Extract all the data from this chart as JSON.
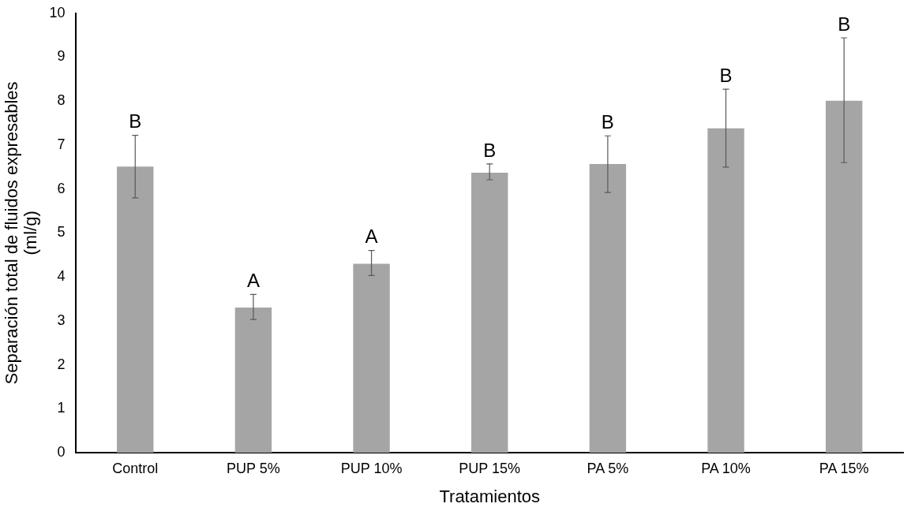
{
  "chart_data": {
    "type": "bar",
    "xlabel": "Tratamientos",
    "ylabel": "Separación total de fluidos expresables (ml/g)",
    "categories": [
      "Control",
      "PUP 5%",
      "PUP 10%",
      "PUP 15%",
      "PA 5%",
      "PA 10%",
      "PA 15%"
    ],
    "values": [
      6.51,
      3.3,
      4.3,
      6.37,
      6.57,
      7.38,
      8.01
    ],
    "errors": [
      [
        5.8,
        7.22
      ],
      [
        3.03,
        3.6
      ],
      [
        4.03,
        4.6
      ],
      [
        6.21,
        6.57
      ],
      [
        5.92,
        7.21
      ],
      [
        6.5,
        8.27
      ],
      [
        6.6,
        9.44
      ]
    ],
    "color": "#a5a5a5",
    "ylim": [
      0,
      10
    ],
    "yticks": [
      0,
      1,
      2,
      3,
      4,
      5,
      6,
      7,
      8,
      9,
      10
    ],
    "grid": false,
    "legend": false,
    "annotations": [
      {
        "text": "B",
        "x": "Control",
        "y": 7.22
      },
      {
        "text": "A",
        "x": "PUP 5%",
        "y": 3.6
      },
      {
        "text": "A",
        "x": "PUP 10%",
        "y": 4.6
      },
      {
        "text": "B",
        "x": "PUP 15%",
        "y": 6.57
      },
      {
        "text": "B",
        "x": "PA 5%",
        "y": 7.21
      },
      {
        "text": "B",
        "x": "PA 10%",
        "y": 8.27
      },
      {
        "text": "B",
        "x": "PA 15%",
        "y": 9.44
      }
    ]
  }
}
